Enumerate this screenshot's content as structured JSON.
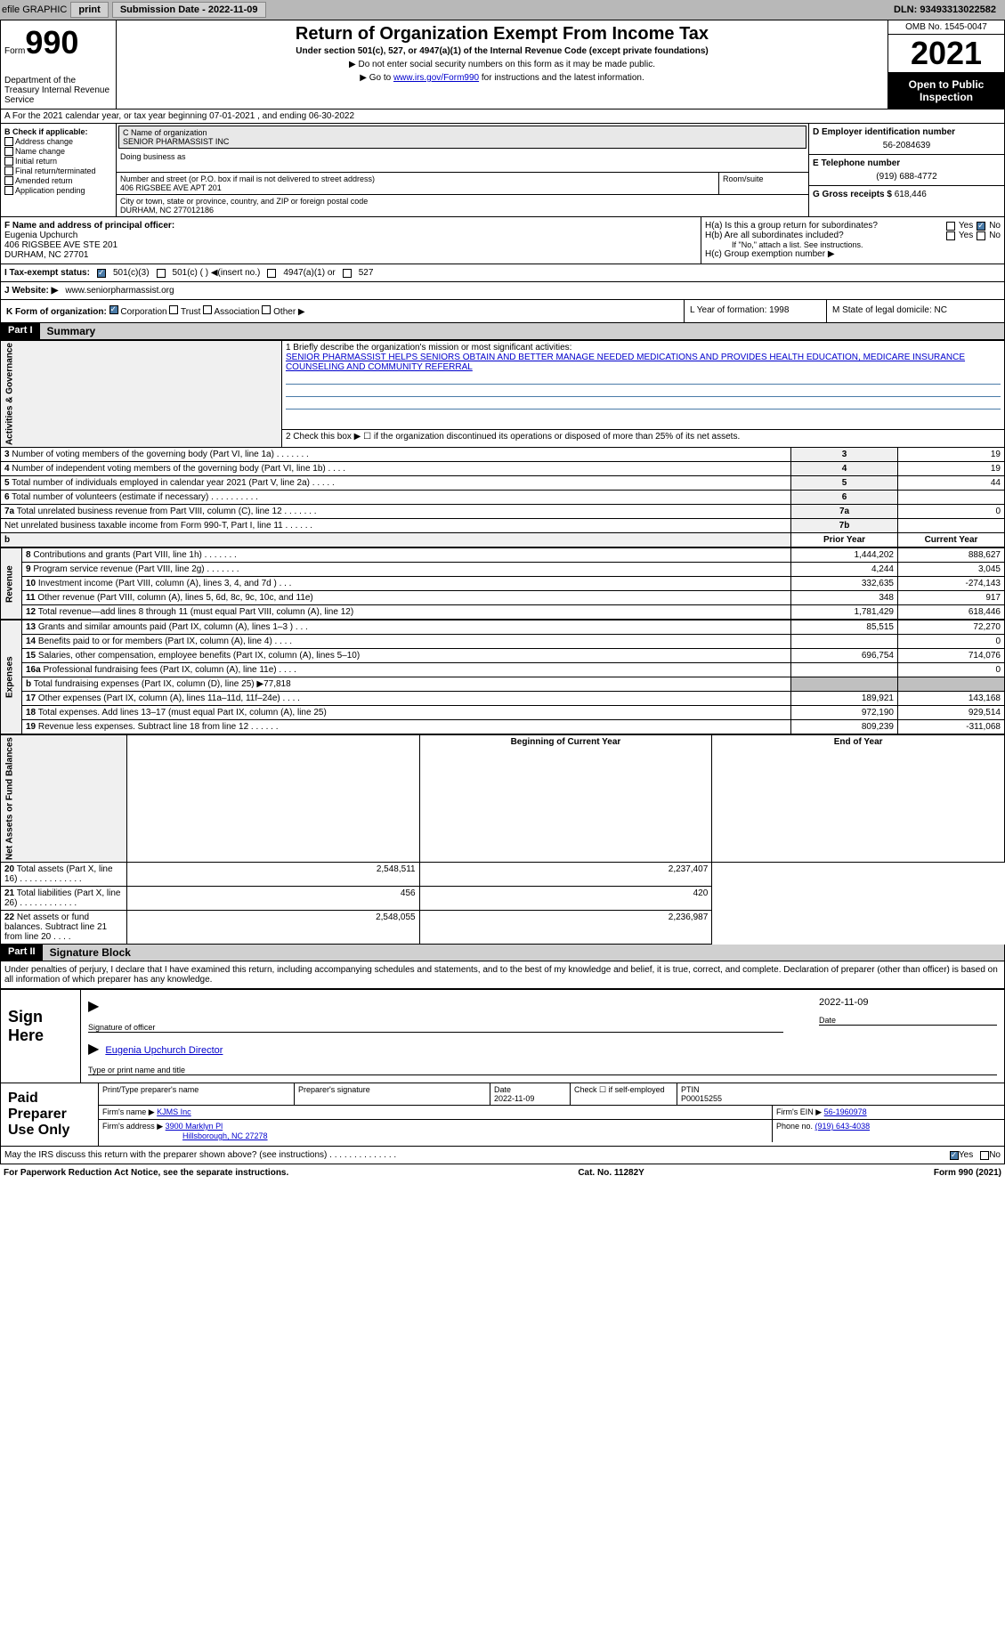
{
  "header": {
    "efile": "efile GRAPHIC",
    "print": "print",
    "submission": "Submission Date - 2022-11-09",
    "dln": "DLN: 93493313022582"
  },
  "form": {
    "form_label": "Form",
    "form_number": "990",
    "title": "Return of Organization Exempt From Income Tax",
    "subtitle": "Under section 501(c), 527, or 4947(a)(1) of the Internal Revenue Code (except private foundations)",
    "instr1": "▶ Do not enter social security numbers on this form as it may be made public.",
    "instr2_prefix": "▶ Go to ",
    "instr2_link": "www.irs.gov/Form990",
    "instr2_suffix": " for instructions and the latest information.",
    "dept": "Department of the Treasury Internal Revenue Service",
    "omb": "OMB No. 1545-0047",
    "year": "2021",
    "open": "Open to Public Inspection"
  },
  "rowA": "A For the 2021 calendar year, or tax year beginning 07-01-2021     , and ending 06-30-2022",
  "colB": {
    "label": "B Check if applicable:",
    "items": [
      "Address change",
      "Name change",
      "Initial return",
      "Final return/terminated",
      "Amended return",
      "Application pending"
    ]
  },
  "colC": {
    "name_label": "C Name of organization",
    "name": "SENIOR PHARMASSIST INC",
    "dba_label": "Doing business as",
    "addr_label": "Number and street (or P.O. box if mail is not delivered to street address)",
    "addr": "406 RIGSBEE AVE APT 201",
    "room_label": "Room/suite",
    "city_label": "City or town, state or province, country, and ZIP or foreign postal code",
    "city": "DURHAM, NC  277012186"
  },
  "colD": {
    "ein_label": "D Employer identification number",
    "ein": "56-2084639",
    "phone_label": "E Telephone number",
    "phone": "(919) 688-4772",
    "gross_label": "G Gross receipts $ ",
    "gross": "618,446"
  },
  "officer": {
    "f_label": "F  Name and address of principal officer:",
    "name": "Eugenia Upchurch",
    "addr1": "406 RIGSBEE AVE STE 201",
    "addr2": "DURHAM, NC  27701",
    "ha": "H(a)  Is this a group return for subordinates?",
    "hb": "H(b)  Are all subordinates included?",
    "hb_note": "If \"No,\" attach a list. See instructions.",
    "hc": "H(c)  Group exemption number ▶",
    "yes": "Yes",
    "no": "No"
  },
  "tax": {
    "i_label": "I      Tax-exempt status:",
    "opt1": "501(c)(3)",
    "opt2": "501(c) (  ) ◀(insert no.)",
    "opt3": "4947(a)(1) or",
    "opt4": "527"
  },
  "website": {
    "j_label": "J      Website: ▶  ",
    "url": "www.seniorpharmassist.org"
  },
  "k": {
    "label": "K Form of organization:",
    "opts": [
      "Corporation",
      "Trust",
      "Association",
      "Other ▶"
    ],
    "l": "L Year of formation: 1998",
    "m": "M State of legal domicile: NC"
  },
  "part1": {
    "header": "Part I",
    "title": "Summary",
    "mission_label": "1   Briefly describe the organization's mission or most significant activities:",
    "mission": "SENIOR PHARMASSIST HELPS SENIORS OBTAIN AND BETTER MANAGE NEEDED MEDICATIONS AND PROVIDES HEALTH EDUCATION, MEDICARE INSURANCE COUNSELING AND COMMUNITY REFERRAL",
    "line2": "2   Check this box ▶ ☐  if the organization discontinued its operations or disposed of more than 25% of its net assets.",
    "lines": [
      {
        "n": "3",
        "d": "Number of voting members of the governing body (Part VI, line 1a)   .    .    .    .    .    .    .",
        "b": "3",
        "v": "19"
      },
      {
        "n": "4",
        "d": "Number of independent voting members of the governing body (Part VI, line 1b)   .    .    .    .",
        "b": "4",
        "v": "19"
      },
      {
        "n": "5",
        "d": "Total number of individuals employed in calendar year 2021 (Part V, line 2a)   .    .    .    .    .",
        "b": "5",
        "v": "44"
      },
      {
        "n": "6",
        "d": "Total number of volunteers (estimate if necessary)    .    .    .    .    .    .    .    .    .    .",
        "b": "6",
        "v": ""
      },
      {
        "n": "7a",
        "d": "Total unrelated business revenue from Part VIII, column (C), line 12   .    .    .    .    .    .    .",
        "b": "7a",
        "v": "0"
      },
      {
        "n": "",
        "d": "Net unrelated business taxable income from Form 990-T, Part I, line 11  .    .    .    .    .    .",
        "b": "7b",
        "v": ""
      }
    ],
    "vert_gov": "Activities & Governance",
    "vert_rev": "Revenue",
    "vert_exp": "Expenses",
    "vert_net": "Net Assets or Fund Balances",
    "prior_hdr": "Prior Year",
    "curr_hdr": "Current Year",
    "b_hdr": "b",
    "rev": [
      {
        "n": "8",
        "d": "Contributions and grants (Part VIII, line 1h)   .    .    .    .    .    .    .",
        "p": "1,444,202",
        "c": "888,627"
      },
      {
        "n": "9",
        "d": "Program service revenue (Part VIII, line 2g)   .    .    .    .    .    .    .",
        "p": "4,244",
        "c": "3,045"
      },
      {
        "n": "10",
        "d": "Investment income (Part VIII, column (A), lines 3, 4, and 7d )    .    .    .",
        "p": "332,635",
        "c": "-274,143"
      },
      {
        "n": "11",
        "d": "Other revenue (Part VIII, column (A), lines 5, 6d, 8c, 9c, 10c, and 11e)",
        "p": "348",
        "c": "917"
      },
      {
        "n": "12",
        "d": "Total revenue—add lines 8 through 11 (must equal Part VIII, column (A), line 12)",
        "p": "1,781,429",
        "c": "618,446"
      }
    ],
    "exp": [
      {
        "n": "13",
        "d": "Grants and similar amounts paid (Part IX, column (A), lines 1–3 )    .    .    .",
        "p": "85,515",
        "c": "72,270"
      },
      {
        "n": "14",
        "d": "Benefits paid to or for members (Part IX, column (A), line 4)   .    .    .    .",
        "p": "",
        "c": "0"
      },
      {
        "n": "15",
        "d": "Salaries, other compensation, employee benefits (Part IX, column (A), lines 5–10)",
        "p": "696,754",
        "c": "714,076"
      },
      {
        "n": "16a",
        "d": "Professional fundraising fees (Part IX, column (A), line 11e)   .    .    .    .",
        "p": "",
        "c": "0"
      },
      {
        "n": "b",
        "d": "Total fundraising expenses (Part IX, column (D), line 25) ▶77,818",
        "p": "SHADE",
        "c": "SHADE"
      },
      {
        "n": "17",
        "d": "Other expenses (Part IX, column (A), lines 11a–11d, 11f–24e)    .    .    .    .",
        "p": "189,921",
        "c": "143,168"
      },
      {
        "n": "18",
        "d": "Total expenses. Add lines 13–17 (must equal Part IX, column (A), line 25)",
        "p": "972,190",
        "c": "929,514"
      },
      {
        "n": "19",
        "d": "Revenue less expenses. Subtract line 18 from line 12   .    .    .    .    .    .",
        "p": "809,239",
        "c": "-311,068"
      }
    ],
    "boy_hdr": "Beginning of Current Year",
    "eoy_hdr": "End of Year",
    "net": [
      {
        "n": "20",
        "d": "Total assets (Part X, line 16)  .    .    .    .    .    .    .    .    .    .    .    .    .",
        "p": "2,548,511",
        "c": "2,237,407"
      },
      {
        "n": "21",
        "d": "Total liabilities (Part X, line 26)  .    .    .    .    .    .    .    .    .    .    .    .",
        "p": "456",
        "c": "420"
      },
      {
        "n": "22",
        "d": "Net assets or fund balances. Subtract line 21 from line 20   .    .    .    .",
        "p": "2,548,055",
        "c": "2,236,987"
      }
    ]
  },
  "part2": {
    "header": "Part II",
    "title": "Signature Block",
    "penalty": "Under penalties of perjury, I declare that I have examined this return, including accompanying schedules and statements, and to the best of my knowledge and belief, it is true, correct, and complete. Declaration of preparer (other than officer) is based on all information of which preparer has any knowledge.",
    "sign_here": "Sign Here",
    "sig_officer": "Signature of officer",
    "sig_date": "2022-11-09",
    "date_label": "Date",
    "printed": "Eugenia Upchurch  Director",
    "printed_label": "Type or print name and title"
  },
  "prep": {
    "label": "Paid Preparer Use Only",
    "name_label": "Print/Type preparer's name",
    "sig_label": "Preparer's signature",
    "date_label": "Date",
    "date": "2022-11-09",
    "check_label": "Check ☐ if self-employed",
    "ptin_label": "PTIN",
    "ptin": "P00015255",
    "firm_name_label": "Firm's name      ▶ ",
    "firm_name": "KJMS Inc",
    "firm_ein_label": "Firm's EIN ▶ ",
    "firm_ein": "56-1960978",
    "firm_addr_label": "Firm's address ▶ ",
    "firm_addr1": "3900 Marklyn Pl",
    "firm_addr2": "Hillsborough, NC  27278",
    "phone_label": "Phone no. ",
    "phone": "(919) 643-4038"
  },
  "footer": {
    "discuss": "May the IRS discuss this return with the preparer shown above? (see instructions)    .    .    .    .    .    .    .    .    .    .    .    .    .    .",
    "yes": "Yes",
    "no": "No",
    "paperwork": "For Paperwork Reduction Act Notice, see the separate instructions.",
    "catno": "Cat. No. 11282Y",
    "formid": "Form 990 (2021)"
  }
}
